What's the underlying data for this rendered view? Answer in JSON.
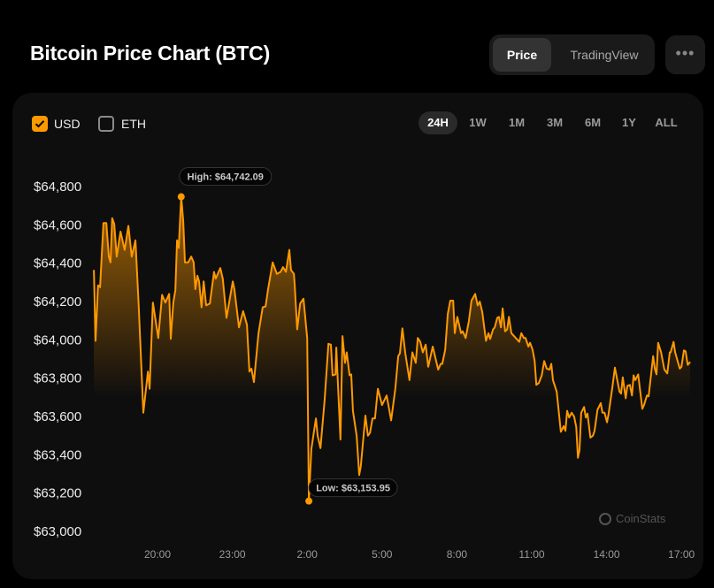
{
  "header": {
    "title": "Bitcoin Price Chart (BTC)",
    "view_toggle": [
      {
        "label": "Price",
        "active": true
      },
      {
        "label": "TradingView",
        "active": false
      }
    ],
    "more_icon": "ellipsis-icon",
    "more_label": "•••"
  },
  "currency": [
    {
      "label": "USD",
      "checked": true
    },
    {
      "label": "ETH",
      "checked": false
    }
  ],
  "ranges": [
    {
      "label": "24H",
      "active": true
    },
    {
      "label": "1W",
      "active": false
    },
    {
      "label": "1M",
      "active": false
    },
    {
      "label": "3M",
      "active": false
    },
    {
      "label": "6M",
      "active": false
    },
    {
      "label": "1Y",
      "active": false
    },
    {
      "label": "ALL",
      "active": false
    }
  ],
  "watermark": "CoinStats",
  "colors": {
    "accent": "#ff9900",
    "background": "#000000",
    "card": "#0e0e0e"
  },
  "chart_data": {
    "type": "area",
    "yticks": [
      "$64,800",
      "$64,600",
      "$64,400",
      "$64,200",
      "$64,000",
      "$63,800",
      "$63,600",
      "$63,400",
      "$63,200",
      "$63,000"
    ],
    "ytick_values": [
      64800,
      64600,
      64400,
      64200,
      64000,
      63800,
      63600,
      63400,
      63200,
      63000
    ],
    "xticks": [
      "20:00",
      "23:00",
      "2:00",
      "5:00",
      "8:00",
      "11:00",
      "14:00",
      "17:00"
    ],
    "ylim": [
      63000,
      64800
    ],
    "grid": false,
    "high": {
      "label": "High: $64,742.09",
      "time": "20:57",
      "value": 64742.09
    },
    "low": {
      "label": "Low: $63,153.95",
      "time": "02:04",
      "value": 63153.95
    },
    "points": [
      [
        "17:27",
        64360
      ],
      [
        "17:31",
        63990
      ],
      [
        "17:37",
        64280
      ],
      [
        "17:42",
        64270
      ],
      [
        "17:50",
        64605
      ],
      [
        "17:57",
        64605
      ],
      [
        "18:03",
        64430
      ],
      [
        "18:07",
        64400
      ],
      [
        "18:11",
        64630
      ],
      [
        "18:16",
        64600
      ],
      [
        "18:22",
        64430
      ],
      [
        "18:31",
        64560
      ],
      [
        "18:41",
        64465
      ],
      [
        "18:50",
        64590
      ],
      [
        "18:58",
        64430
      ],
      [
        "19:07",
        64515
      ],
      [
        "19:15",
        64170
      ],
      [
        "19:26",
        63615
      ],
      [
        "19:37",
        63830
      ],
      [
        "19:41",
        63740
      ],
      [
        "19:49",
        64190
      ],
      [
        "20:02",
        64005
      ],
      [
        "20:11",
        64230
      ],
      [
        "20:19",
        64190
      ],
      [
        "20:28",
        64235
      ],
      [
        "20:32",
        64000
      ],
      [
        "20:38",
        64190
      ],
      [
        "20:43",
        64255
      ],
      [
        "20:47",
        64515
      ],
      [
        "20:51",
        64475
      ],
      [
        "20:57",
        64742.09
      ],
      [
        "21:02",
        64615
      ],
      [
        "21:06",
        64400
      ],
      [
        "21:14",
        64400
      ],
      [
        "21:21",
        64430
      ],
      [
        "21:27",
        64400
      ],
      [
        "21:31",
        64260
      ],
      [
        "21:36",
        64330
      ],
      [
        "21:40",
        64300
      ],
      [
        "21:46",
        64165
      ],
      [
        "21:51",
        64300
      ],
      [
        "21:57",
        64175
      ],
      [
        "22:06",
        64185
      ],
      [
        "22:16",
        64350
      ],
      [
        "22:20",
        64315
      ],
      [
        "22:31",
        64370
      ],
      [
        "22:37",
        64315
      ],
      [
        "22:46",
        64110
      ],
      [
        "23:01",
        64300
      ],
      [
        "23:05",
        64260
      ],
      [
        "23:16",
        64060
      ],
      [
        "23:26",
        64145
      ],
      [
        "23:35",
        64075
      ],
      [
        "23:41",
        63830
      ],
      [
        "23:46",
        63845
      ],
      [
        "23:52",
        63775
      ],
      [
        "00:03",
        64030
      ],
      [
        "00:13",
        64165
      ],
      [
        "00:20",
        64170
      ],
      [
        "00:26",
        64260
      ],
      [
        "00:37",
        64400
      ],
      [
        "00:47",
        64340
      ],
      [
        "00:56",
        64350
      ],
      [
        "01:02",
        64375
      ],
      [
        "01:09",
        64350
      ],
      [
        "01:17",
        64465
      ],
      [
        "01:21",
        64360
      ],
      [
        "01:28",
        64340
      ],
      [
        "01:30",
        64280
      ],
      [
        "01:36",
        64050
      ],
      [
        "01:43",
        64185
      ],
      [
        "01:51",
        64210
      ],
      [
        "02:00",
        64005
      ],
      [
        "02:04",
        63153.95
      ],
      [
        "02:10",
        63425
      ],
      [
        "02:21",
        63585
      ],
      [
        "02:25",
        63495
      ],
      [
        "02:32",
        63430
      ],
      [
        "02:42",
        63680
      ],
      [
        "02:51",
        63975
      ],
      [
        "02:57",
        63970
      ],
      [
        "03:01",
        63810
      ],
      [
        "03:08",
        63815
      ],
      [
        "03:10",
        63955
      ],
      [
        "03:20",
        63475
      ],
      [
        "03:25",
        64015
      ],
      [
        "03:31",
        63875
      ],
      [
        "03:35",
        63930
      ],
      [
        "03:42",
        63810
      ],
      [
        "03:46",
        63815
      ],
      [
        "03:50",
        63625
      ],
      [
        "03:59",
        63495
      ],
      [
        "04:05",
        63290
      ],
      [
        "04:09",
        63335
      ],
      [
        "04:20",
        63600
      ],
      [
        "04:26",
        63495
      ],
      [
        "04:31",
        63510
      ],
      [
        "04:37",
        63585
      ],
      [
        "04:43",
        63585
      ],
      [
        "04:50",
        63740
      ],
      [
        "05:00",
        63655
      ],
      [
        "05:11",
        63705
      ],
      [
        "05:22",
        63575
      ],
      [
        "05:32",
        63740
      ],
      [
        "05:39",
        63910
      ],
      [
        "05:43",
        63925
      ],
      [
        "05:49",
        64055
      ],
      [
        "05:56",
        63925
      ],
      [
        "06:06",
        63785
      ],
      [
        "06:13",
        63930
      ],
      [
        "06:21",
        63875
      ],
      [
        "06:26",
        64005
      ],
      [
        "06:32",
        63985
      ],
      [
        "06:38",
        63930
      ],
      [
        "06:45",
        63970
      ],
      [
        "06:51",
        63855
      ],
      [
        "07:02",
        63960
      ],
      [
        "07:15",
        63840
      ],
      [
        "07:21",
        63870
      ],
      [
        "07:25",
        63870
      ],
      [
        "07:32",
        63945
      ],
      [
        "07:38",
        64130
      ],
      [
        "07:44",
        64200
      ],
      [
        "07:51",
        64200
      ],
      [
        "07:55",
        64030
      ],
      [
        "08:01",
        64115
      ],
      [
        "08:10",
        64030
      ],
      [
        "08:14",
        64040
      ],
      [
        "08:21",
        64005
      ],
      [
        "08:29",
        64095
      ],
      [
        "08:35",
        64200
      ],
      [
        "08:44",
        64235
      ],
      [
        "08:50",
        64175
      ],
      [
        "08:55",
        64195
      ],
      [
        "09:01",
        64140
      ],
      [
        "09:10",
        63990
      ],
      [
        "09:16",
        64030
      ],
      [
        "09:20",
        64000
      ],
      [
        "09:27",
        64050
      ],
      [
        "09:31",
        64060
      ],
      [
        "09:37",
        64110
      ],
      [
        "09:41",
        64115
      ],
      [
        "09:46",
        64060
      ],
      [
        "09:50",
        64160
      ],
      [
        "09:56",
        64040
      ],
      [
        "10:01",
        64050
      ],
      [
        "10:05",
        64115
      ],
      [
        "10:11",
        64030
      ],
      [
        "10:30",
        63985
      ],
      [
        "10:35",
        64030
      ],
      [
        "10:41",
        64005
      ],
      [
        "10:45",
        64005
      ],
      [
        "10:52",
        63960
      ],
      [
        "10:56",
        63980
      ],
      [
        "11:02",
        63945
      ],
      [
        "11:07",
        63885
      ],
      [
        "11:11",
        63760
      ],
      [
        "11:17",
        63770
      ],
      [
        "11:24",
        63810
      ],
      [
        "11:30",
        63885
      ],
      [
        "11:36",
        63845
      ],
      [
        "11:43",
        63840
      ],
      [
        "11:47",
        63870
      ],
      [
        "11:51",
        63785
      ],
      [
        "12:00",
        63725
      ],
      [
        "12:10",
        63515
      ],
      [
        "12:17",
        63545
      ],
      [
        "12:21",
        63520
      ],
      [
        "12:25",
        63625
      ],
      [
        "12:30",
        63590
      ],
      [
        "12:36",
        63615
      ],
      [
        "12:42",
        63595
      ],
      [
        "12:47",
        63540
      ],
      [
        "12:51",
        63380
      ],
      [
        "12:55",
        63420
      ],
      [
        "12:59",
        63615
      ],
      [
        "13:06",
        63645
      ],
      [
        "13:10",
        63590
      ],
      [
        "13:14",
        63610
      ],
      [
        "13:21",
        63485
      ],
      [
        "13:27",
        63495
      ],
      [
        "13:31",
        63520
      ],
      [
        "13:38",
        63630
      ],
      [
        "13:46",
        63665
      ],
      [
        "13:50",
        63615
      ],
      [
        "13:55",
        63615
      ],
      [
        "14:01",
        63565
      ],
      [
        "14:05",
        63610
      ],
      [
        "14:14",
        63750
      ],
      [
        "14:20",
        63850
      ],
      [
        "14:31",
        63725
      ],
      [
        "14:35",
        63715
      ],
      [
        "14:39",
        63800
      ],
      [
        "14:46",
        63690
      ],
      [
        "14:50",
        63755
      ],
      [
        "14:56",
        63760
      ],
      [
        "15:01",
        63705
      ],
      [
        "15:05",
        63810
      ],
      [
        "15:09",
        63785
      ],
      [
        "15:16",
        63815
      ],
      [
        "15:26",
        63635
      ],
      [
        "15:30",
        63655
      ],
      [
        "15:37",
        63705
      ],
      [
        "15:41",
        63700
      ],
      [
        "15:52",
        63910
      ],
      [
        "15:56",
        63845
      ],
      [
        "16:00",
        63815
      ],
      [
        "16:04",
        63980
      ],
      [
        "16:11",
        63930
      ],
      [
        "16:19",
        63840
      ],
      [
        "16:26",
        63820
      ],
      [
        "16:32",
        63930
      ],
      [
        "16:34",
        63930
      ],
      [
        "16:41",
        63985
      ],
      [
        "16:45",
        63930
      ],
      [
        "16:56",
        63845
      ],
      [
        "17:00",
        63855
      ],
      [
        "17:06",
        63940
      ],
      [
        "17:10",
        63935
      ],
      [
        "17:15",
        63865
      ],
      [
        "17:21",
        63880
      ]
    ]
  }
}
